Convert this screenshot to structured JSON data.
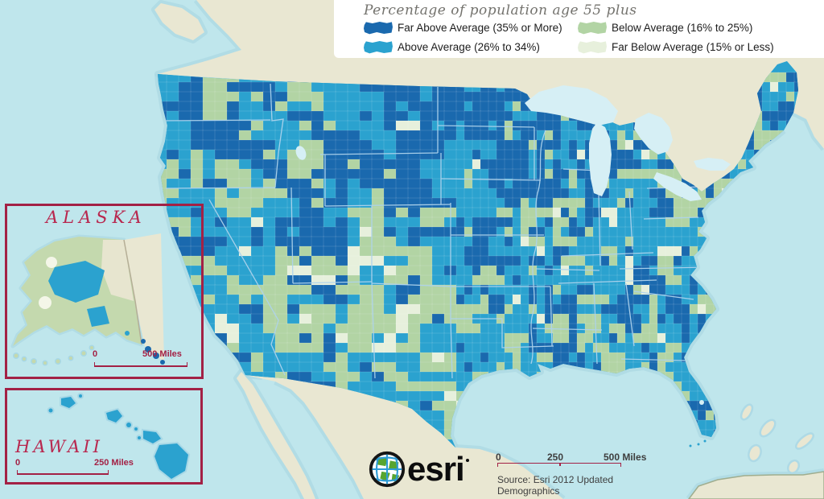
{
  "legend": {
    "title": "Percentage of population age 55 plus",
    "items": [
      {
        "label": "Far Above Average (35% or More)",
        "color": "#1a69ae"
      },
      {
        "label": "Above Average (26% to 34%)",
        "color": "#2ba2cf"
      },
      {
        "label": "Below Average (16% to 25%)",
        "color": "#b2d4a4"
      },
      {
        "label": "Far Below Average (15% or Less)",
        "color": "#e7f0dc"
      }
    ]
  },
  "insets": {
    "alaska": {
      "title": "ALASKA",
      "scale_start": "0",
      "scale_end": "500 Miles"
    },
    "hawaii": {
      "title": "HAWAII",
      "scale_start": "0",
      "scale_end": "250 Miles"
    }
  },
  "scale_bar": {
    "start": "0",
    "middle": "250",
    "end": "500 Miles"
  },
  "attribution": {
    "source_line1": "Source:  Esri 2012 Updated",
    "source_line2": "Demographics",
    "logo_text": "esri"
  },
  "map": {
    "type": "choropleth",
    "subject": "Percentage of population age 55 plus, by U.S. county",
    "region": "United States (contiguous states with Alaska and Hawaii insets)",
    "classes": [
      {
        "name": "Far Above Average",
        "range": "35% or More",
        "color": "#1a69ae"
      },
      {
        "name": "Above Average",
        "range": "26% to 34%",
        "color": "#2ba2cf"
      },
      {
        "name": "Below Average",
        "range": "16% to 25%",
        "color": "#b2d4a4"
      },
      {
        "name": "Far Below Average",
        "range": "15% or Less",
        "color": "#e7f0dc"
      }
    ],
    "colors": {
      "ocean": "#bfe6ec",
      "lakes": "#d6eff5",
      "foreign_land": "#e9e7d2",
      "state_border": "#aed3ec",
      "county_border": "#ffffff",
      "inset_frame": "#a32145",
      "coast_halo": "#a9d7e2",
      "text_dark": "#3e3e3e",
      "legend_title_color": "#73726d"
    }
  }
}
